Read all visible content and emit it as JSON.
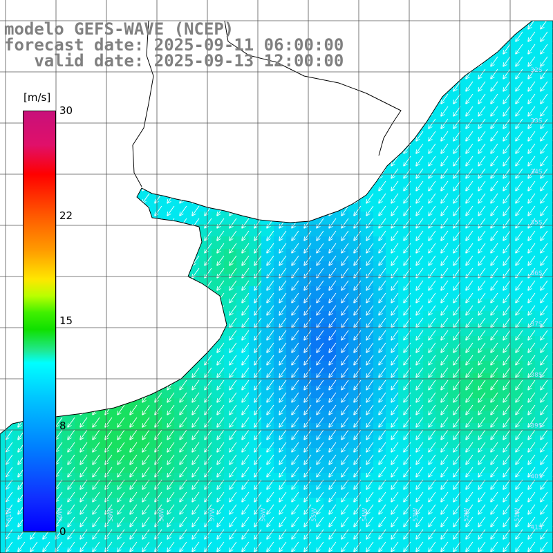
{
  "header": {
    "line1": "modelo GEFS-WAVE (NCEP)",
    "line2": "forecast date: 2025-09-11 06:00:00",
    "line3": "   valid date: 2025-09-13 12:00:00"
  },
  "colorbar": {
    "unit": "[m/s]",
    "ticks": [
      "30",
      "22",
      "15",
      "8",
      "0"
    ],
    "colors": [
      "#c8107a",
      "#ff0000",
      "#ff9a00",
      "#ffe600",
      "#10e000",
      "#00ffff",
      "#0080ff",
      "#0000ff"
    ]
  },
  "lat_labels": [
    "32S",
    "33S",
    "34S",
    "35S",
    "36S",
    "37S",
    "38S",
    "39S",
    "40S",
    "41S"
  ],
  "lon_labels": [
    "61W",
    "60W",
    "59W",
    "58W",
    "57W",
    "56W",
    "55W",
    "54W",
    "53W",
    "52W",
    "51W"
  ],
  "wind": {
    "direction": "toward south-west",
    "field_colors": {
      "strong": "#18e060",
      "medium": "#00e8f0",
      "weak": "#0a6cf4"
    }
  }
}
